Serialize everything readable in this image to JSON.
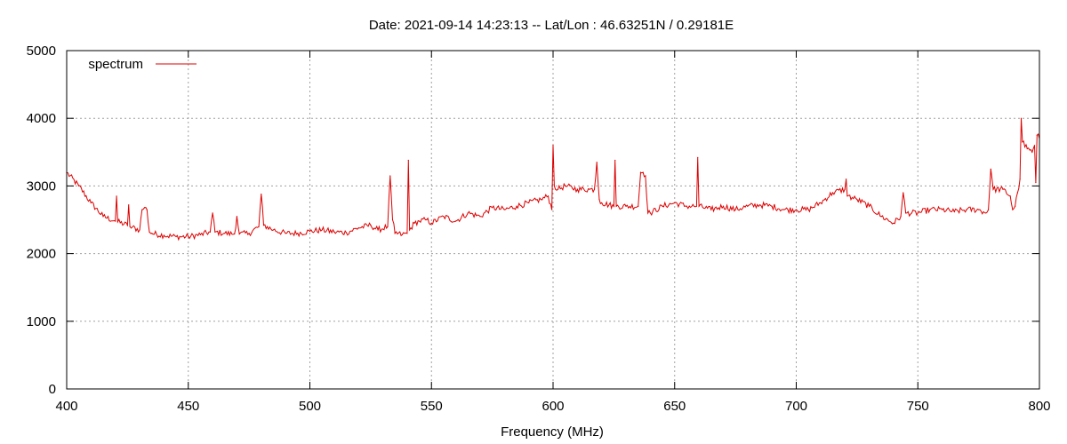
{
  "chart_data": {
    "type": "line",
    "title": "Date: 2021-09-14 14:23:13  --  Lat/Lon : 46.63251N / 0.29181E",
    "xlabel": "Frequency (MHz)",
    "ylabel": "",
    "xlim": [
      400,
      800
    ],
    "ylim": [
      0,
      5000
    ],
    "x_ticks": [
      400,
      450,
      500,
      550,
      600,
      650,
      700,
      750,
      800
    ],
    "y_ticks": [
      0,
      1000,
      2000,
      3000,
      4000,
      5000
    ],
    "grid": true,
    "legend_position": "top-left",
    "series": [
      {
        "name": "spectrum",
        "color": "#dd0000",
        "x": [
          400,
          405,
          410,
          415,
          420,
          420.5,
          421,
          425,
          425.5,
          426,
          430,
          431,
          432,
          433,
          434,
          435,
          440,
          445,
          450,
          455,
          459,
          460,
          461,
          465,
          469,
          470,
          471,
          475,
          479,
          480,
          481,
          485,
          490,
          495,
          500,
          505,
          510,
          515,
          520,
          525,
          528,
          532,
          533,
          534,
          535,
          538,
          540,
          540.5,
          541,
          543,
          545,
          548,
          550,
          555,
          560,
          565,
          570,
          575,
          580,
          585,
          590,
          595,
          598,
          599.5,
          600,
          600.5,
          602,
          605,
          610,
          615,
          617,
          618,
          619,
          620,
          625,
          625.5,
          626,
          630,
          635,
          636,
          637,
          638,
          639,
          640,
          645,
          650,
          655,
          659,
          659.5,
          660,
          665,
          670,
          675,
          680,
          685,
          690,
          695,
          700,
          705,
          710,
          715,
          720,
          720.5,
          721,
          725,
          730,
          735,
          740,
          743,
          744,
          745,
          750,
          755,
          760,
          765,
          770,
          775,
          778,
          779,
          780,
          781,
          785,
          788,
          789,
          790,
          791,
          792,
          792.5,
          793,
          795,
          797,
          798,
          798.5,
          799,
          800
        ],
        "values": [
          3200,
          3000,
          2750,
          2550,
          2480,
          2850,
          2470,
          2420,
          2720,
          2400,
          2350,
          2650,
          2680,
          2650,
          2320,
          2300,
          2270,
          2250,
          2250,
          2280,
          2320,
          2600,
          2320,
          2300,
          2290,
          2550,
          2290,
          2300,
          2400,
          2880,
          2420,
          2350,
          2300,
          2300,
          2330,
          2350,
          2320,
          2310,
          2380,
          2420,
          2350,
          2400,
          3150,
          2500,
          2300,
          2280,
          2300,
          3380,
          2350,
          2450,
          2480,
          2500,
          2450,
          2550,
          2480,
          2600,
          2550,
          2680,
          2650,
          2700,
          2750,
          2800,
          2850,
          2650,
          3600,
          3000,
          2950,
          3000,
          2950,
          2950,
          2950,
          3350,
          2800,
          2750,
          2700,
          3380,
          2700,
          2700,
          2700,
          3200,
          3200,
          3150,
          2600,
          2600,
          2700,
          2750,
          2700,
          2700,
          3420,
          2700,
          2650,
          2700,
          2650,
          2700,
          2720,
          2700,
          2650,
          2650,
          2650,
          2750,
          2900,
          2950,
          3100,
          2850,
          2800,
          2700,
          2550,
          2450,
          2550,
          2900,
          2600,
          2600,
          2650,
          2650,
          2620,
          2650,
          2650,
          2600,
          2650,
          3250,
          2950,
          2950,
          2850,
          2650,
          2700,
          2900,
          3100,
          4000,
          3650,
          3550,
          3500,
          3600,
          3050,
          3750,
          3700
        ]
      }
    ]
  }
}
